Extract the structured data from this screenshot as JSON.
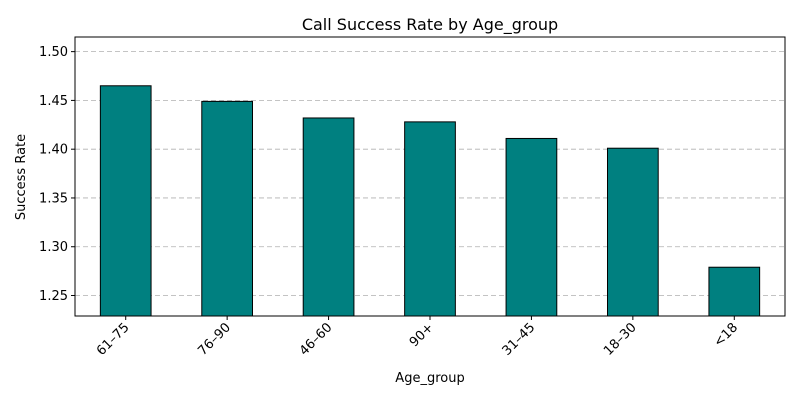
{
  "chart_data": {
    "type": "bar",
    "title": "Call Success Rate by Age_group",
    "xlabel": "Age_group",
    "ylabel": "Success Rate",
    "categories": [
      "61–75",
      "76–90",
      "46–60",
      "90+",
      "31–45",
      "18–30",
      "<18"
    ],
    "values": [
      1.465,
      1.449,
      1.432,
      1.428,
      1.411,
      1.401,
      1.279
    ],
    "ylim": [
      1.229,
      1.515
    ],
    "yticks": [
      "1.25",
      "1.30",
      "1.35",
      "1.40",
      "1.45",
      "1.50"
    ],
    "grid": "y-dashed",
    "bar_color": "#008080",
    "legend": "none"
  }
}
